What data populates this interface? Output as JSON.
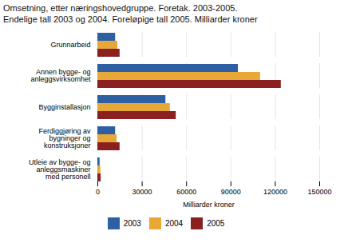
{
  "chart_data": {
    "type": "bar",
    "orientation": "horizontal",
    "title": "Omsetning, etter næringshovedgruppe. Foretak. 2003-2005.",
    "subtitle": "Endelige tall 2003 og 2004. Foreløpige tall 2005. Milliarder kroner",
    "categories": [
      "Grunnarbeid",
      "Annen bygge- og\nanleggsvirksomhet",
      "Bygginstallasjon",
      "Ferdiggjøring av\nbygninger og\nkonstruksjoner",
      "Utleie av bygge- og\nanleggsmaskiner\nmed personell"
    ],
    "series": [
      {
        "name": "2003",
        "color": "#2E5FA3",
        "values": [
          12000,
          95000,
          46000,
          12000,
          1500
        ]
      },
      {
        "name": "2004",
        "color": "#E8A838",
        "values": [
          13500,
          110000,
          49000,
          13000,
          2000
        ]
      },
      {
        "name": "2005",
        "color": "#8B2020",
        "values": [
          15000,
          124000,
          53000,
          15000,
          2200
        ]
      }
    ],
    "xlabel": "Milliarder kroner",
    "xlim": [
      0,
      150000
    ],
    "xticks": [
      0,
      30000,
      60000,
      90000,
      120000,
      150000
    ],
    "grid": true,
    "legend": "bottom"
  }
}
